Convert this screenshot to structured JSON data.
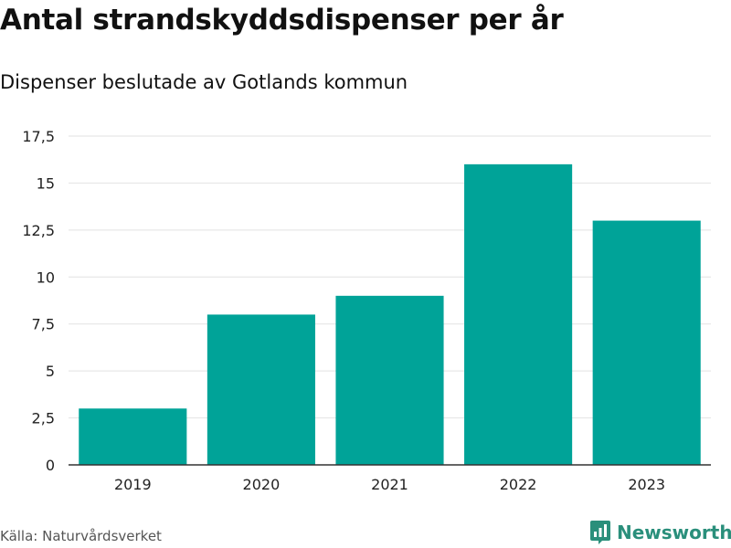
{
  "chart_data": {
    "type": "bar",
    "title": "Antal strandskyddsdispenser per år",
    "subtitle": "Dispenser beslutade av Gotlands kommun",
    "xlabel": "",
    "ylabel": "",
    "categories": [
      "2019",
      "2020",
      "2021",
      "2022",
      "2023"
    ],
    "values": [
      3,
      8,
      9,
      16,
      13
    ],
    "ylim": [
      0,
      17.5
    ],
    "yticks": [
      0,
      2.5,
      5,
      7.5,
      10,
      12.5,
      15,
      17.5
    ],
    "ytick_labels": [
      "0",
      "2,5",
      "5",
      "7,5",
      "10",
      "12,5",
      "15",
      "17,5"
    ],
    "grid": true,
    "legend": "none",
    "bar_color": "#00a398",
    "grid_color": "#e2e2e2",
    "axis_color": "#333333"
  },
  "footer": {
    "source": "Källa: Naturvårdsverket",
    "brand": "Newsworthy",
    "brand_color": "#2a8f7b",
    "brand_icon": "newsworthy-logo-icon"
  }
}
